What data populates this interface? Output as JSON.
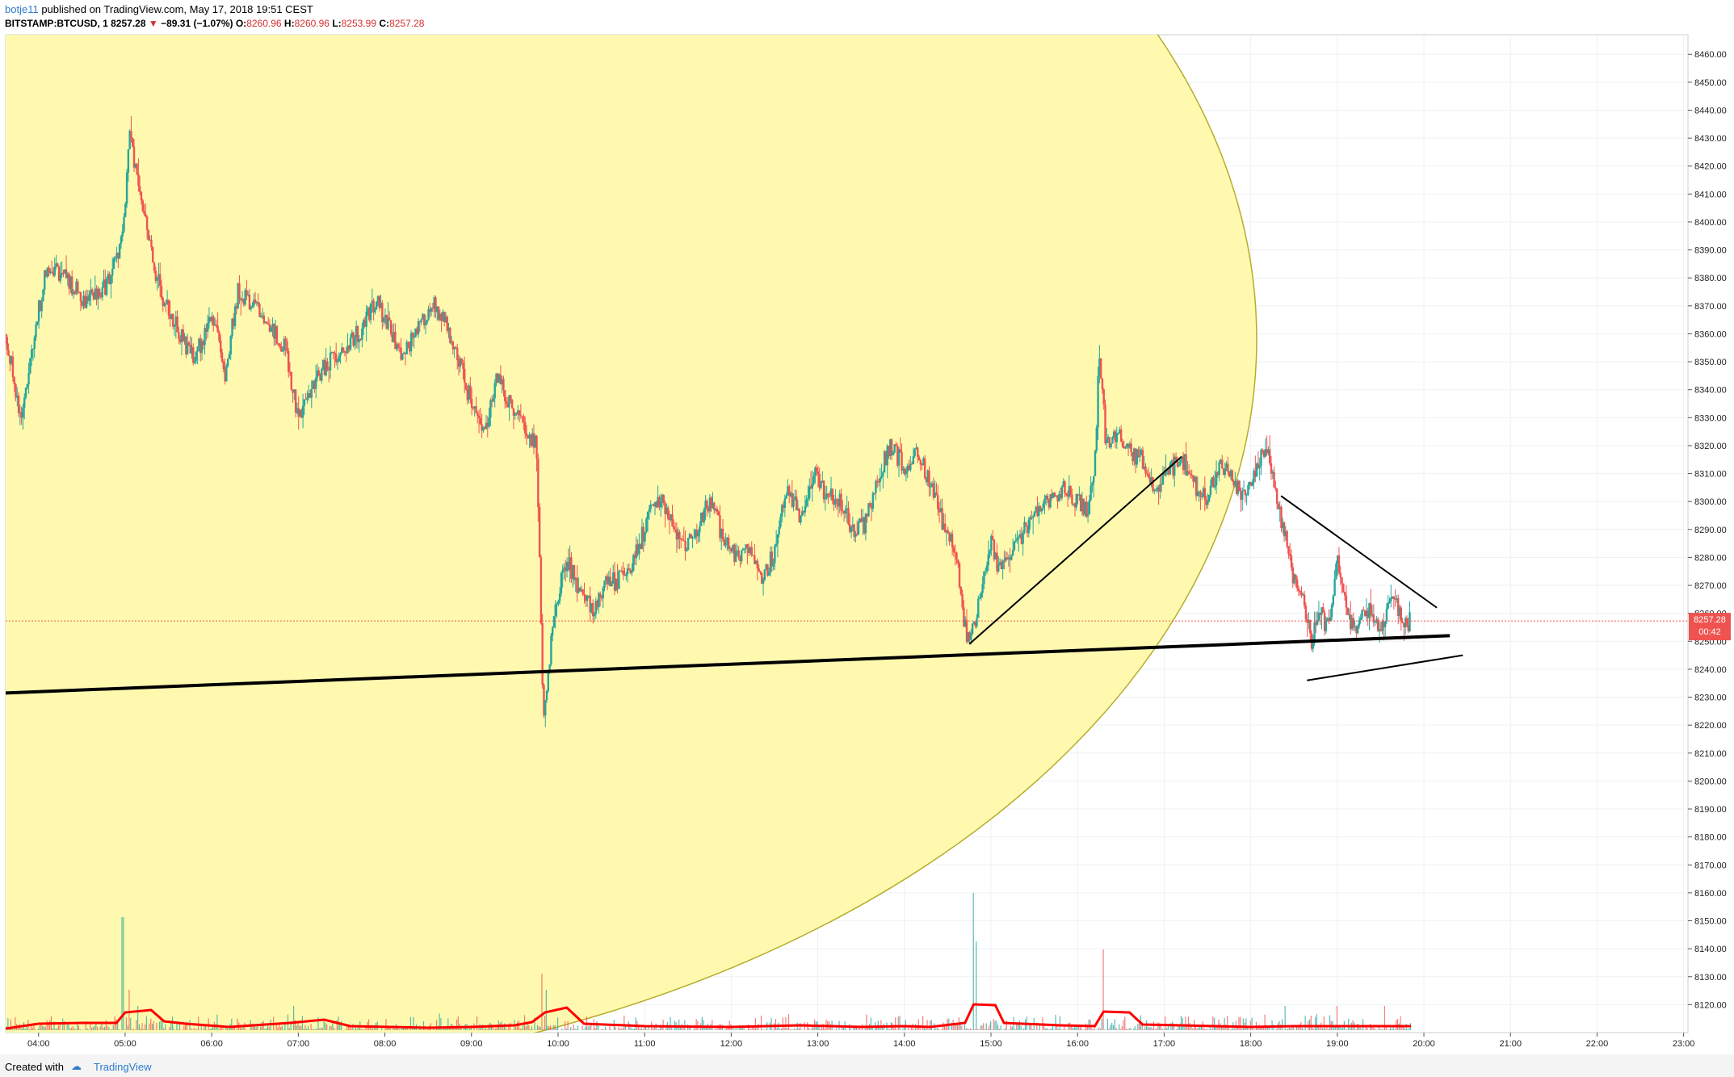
{
  "header": {
    "user": "botje11",
    "published_text": "published on TradingView.com, May 17, 2018 19:51 CEST",
    "symbol": "BITSTAMP:BTCUSD, 1",
    "last": "8257.28",
    "arrow": "▼",
    "change": "−89.31 (−1.07%)",
    "o_label": "O:",
    "o_value": "8260.96",
    "h_label": "H:",
    "h_value": "8260.96",
    "l_label": "L:",
    "l_value": "8253.99",
    "c_label": "C:",
    "c_value": "8257.28"
  },
  "footer": {
    "created_with": "Created with",
    "brand": "TradingView"
  },
  "price_tag": {
    "value": "8257.28",
    "countdown": "00:42"
  },
  "colors": {
    "up": "#26a69a",
    "down": "#ef5350",
    "ellipse_fill": "#fff9b0",
    "ellipse_stroke": "#b5ad2a",
    "volume_ma": "#ff0000",
    "price_tag": "#ef5350",
    "grid": "#eef0f3"
  },
  "chart_data": {
    "type": "candlestick",
    "ylim": [
      8110,
      8467
    ],
    "x_range_hours": [
      3.62,
      23.05
    ],
    "y_ticks": [
      8120,
      8130,
      8140,
      8150,
      8160,
      8170,
      8180,
      8190,
      8200,
      8210,
      8220,
      8230,
      8240,
      8250,
      8260,
      8270,
      8280,
      8290,
      8300,
      8310,
      8320,
      8330,
      8340,
      8350,
      8360,
      8370,
      8380,
      8390,
      8400,
      8410,
      8420,
      8430,
      8440,
      8450,
      8460
    ],
    "y_tick_labels": [
      "8120.00",
      "8130.00",
      "8140.00",
      "8150.00",
      "8160.00",
      "8170.00",
      "8180.00",
      "8190.00",
      "8200.00",
      "8210.00",
      "8220.00",
      "8230.00",
      "8240.00",
      "8250.00",
      "8260.00",
      "8270.00",
      "8280.00",
      "8290.00",
      "8300.00",
      "8310.00",
      "8320.00",
      "8330.00",
      "8340.00",
      "8350.00",
      "8360.00",
      "8370.00",
      "8380.00",
      "8390.00",
      "8400.00",
      "8410.00",
      "8420.00",
      "8430.00",
      "8440.00",
      "8450.00",
      "8460.00"
    ],
    "x_ticks": [
      4,
      5,
      6,
      7,
      8,
      9,
      10,
      11,
      12,
      13,
      14,
      15,
      16,
      17,
      18,
      19,
      20,
      21,
      22,
      23
    ],
    "x_tick_labels": [
      "04:00",
      "05:00",
      "06:00",
      "07:00",
      "08:00",
      "09:00",
      "10:00",
      "11:00",
      "12:00",
      "13:00",
      "14:00",
      "15:00",
      "16:00",
      "17:00",
      "18:00",
      "19:00",
      "20:00",
      "21:00",
      "22:00",
      "23:00"
    ],
    "last_price": 8257.28,
    "price_path": [
      [
        3.62,
        8360
      ],
      [
        3.8,
        8330
      ],
      [
        3.95,
        8360
      ],
      [
        4.1,
        8385
      ],
      [
        4.3,
        8380
      ],
      [
        4.55,
        8372
      ],
      [
        4.8,
        8378
      ],
      [
        4.98,
        8395
      ],
      [
        5.05,
        8435
      ],
      [
        5.12,
        8418
      ],
      [
        5.3,
        8388
      ],
      [
        5.45,
        8372
      ],
      [
        5.6,
        8362
      ],
      [
        5.8,
        8350
      ],
      [
        6.0,
        8368
      ],
      [
        6.15,
        8345
      ],
      [
        6.3,
        8375
      ],
      [
        6.45,
        8372
      ],
      [
        6.6,
        8366
      ],
      [
        6.85,
        8355
      ],
      [
        7.0,
        8330
      ],
      [
        7.15,
        8340
      ],
      [
        7.3,
        8348
      ],
      [
        7.5,
        8355
      ],
      [
        7.7,
        8360
      ],
      [
        7.9,
        8372
      ],
      [
        8.05,
        8362
      ],
      [
        8.2,
        8352
      ],
      [
        8.4,
        8362
      ],
      [
        8.55,
        8372
      ],
      [
        8.75,
        8360
      ],
      [
        8.95,
        8340
      ],
      [
        9.15,
        8325
      ],
      [
        9.3,
        8345
      ],
      [
        9.45,
        8335
      ],
      [
        9.6,
        8328
      ],
      [
        9.75,
        8320
      ],
      [
        9.8,
        8262
      ],
      [
        9.83,
        8225
      ],
      [
        9.88,
        8235
      ],
      [
        9.95,
        8260
      ],
      [
        10.1,
        8280
      ],
      [
        10.25,
        8268
      ],
      [
        10.4,
        8262
      ],
      [
        10.55,
        8270
      ],
      [
        10.7,
        8272
      ],
      [
        10.85,
        8278
      ],
      [
        11.0,
        8290
      ],
      [
        11.15,
        8302
      ],
      [
        11.3,
        8295
      ],
      [
        11.45,
        8283
      ],
      [
        11.6,
        8290
      ],
      [
        11.75,
        8300
      ],
      [
        11.9,
        8288
      ],
      [
        12.05,
        8280
      ],
      [
        12.2,
        8285
      ],
      [
        12.35,
        8272
      ],
      [
        12.5,
        8282
      ],
      [
        12.65,
        8305
      ],
      [
        12.8,
        8295
      ],
      [
        12.95,
        8310
      ],
      [
        13.1,
        8302
      ],
      [
        13.25,
        8300
      ],
      [
        13.4,
        8290
      ],
      [
        13.55,
        8292
      ],
      [
        13.7,
        8310
      ],
      [
        13.85,
        8320
      ],
      [
        14.0,
        8312
      ],
      [
        14.15,
        8318
      ],
      [
        14.3,
        8306
      ],
      [
        14.45,
        8292
      ],
      [
        14.6,
        8280
      ],
      [
        14.7,
        8255
      ],
      [
        14.75,
        8248
      ],
      [
        14.85,
        8262
      ],
      [
        15.0,
        8285
      ],
      [
        15.1,
        8275
      ],
      [
        15.25,
        8282
      ],
      [
        15.4,
        8290
      ],
      [
        15.55,
        8298
      ],
      [
        15.7,
        8302
      ],
      [
        15.85,
        8305
      ],
      [
        16.0,
        8300
      ],
      [
        16.12,
        8296
      ],
      [
        16.2,
        8312
      ],
      [
        16.25,
        8355
      ],
      [
        16.33,
        8320
      ],
      [
        16.45,
        8325
      ],
      [
        16.6,
        8318
      ],
      [
        16.75,
        8315
      ],
      [
        16.9,
        8305
      ],
      [
        17.05,
        8310
      ],
      [
        17.2,
        8316
      ],
      [
        17.35,
        8306
      ],
      [
        17.5,
        8300
      ],
      [
        17.65,
        8315
      ],
      [
        17.8,
        8306
      ],
      [
        17.95,
        8302
      ],
      [
        18.1,
        8314
      ],
      [
        18.2,
        8320
      ],
      [
        18.3,
        8300
      ],
      [
        18.4,
        8288
      ],
      [
        18.5,
        8272
      ],
      [
        18.6,
        8264
      ],
      [
        18.7,
        8250
      ],
      [
        18.8,
        8260
      ],
      [
        18.9,
        8254
      ],
      [
        19.0,
        8280
      ],
      [
        19.1,
        8262
      ],
      [
        19.2,
        8252
      ],
      [
        19.35,
        8262
      ],
      [
        19.5,
        8255
      ],
      [
        19.65,
        8265
      ],
      [
        19.78,
        8256
      ],
      [
        19.85,
        8257.28
      ]
    ],
    "volume_ma": [
      [
        3.62,
        0.2
      ],
      [
        4.0,
        0.8
      ],
      [
        4.5,
        0.9
      ],
      [
        4.9,
        0.9
      ],
      [
        5.0,
        2.2
      ],
      [
        5.3,
        2.5
      ],
      [
        5.45,
        1.1
      ],
      [
        5.7,
        0.8
      ],
      [
        6.2,
        0.4
      ],
      [
        6.9,
        0.9
      ],
      [
        7.3,
        1.3
      ],
      [
        7.6,
        0.5
      ],
      [
        8.5,
        0.3
      ],
      [
        9.0,
        0.4
      ],
      [
        9.5,
        0.6
      ],
      [
        9.7,
        1.0
      ],
      [
        9.85,
        2.2
      ],
      [
        10.1,
        2.8
      ],
      [
        10.3,
        0.8
      ],
      [
        11.0,
        0.5
      ],
      [
        12.0,
        0.4
      ],
      [
        12.8,
        0.6
      ],
      [
        13.5,
        0.4
      ],
      [
        14.0,
        0.5
      ],
      [
        14.3,
        0.4
      ],
      [
        14.7,
        0.9
      ],
      [
        14.8,
        3.2
      ],
      [
        15.05,
        3.1
      ],
      [
        15.15,
        0.9
      ],
      [
        15.8,
        0.6
      ],
      [
        16.2,
        0.5
      ],
      [
        16.3,
        2.3
      ],
      [
        16.6,
        2.2
      ],
      [
        16.75,
        0.7
      ],
      [
        17.2,
        0.6
      ],
      [
        18.0,
        0.4
      ],
      [
        18.5,
        0.5
      ],
      [
        19.0,
        0.5
      ],
      [
        19.5,
        0.5
      ],
      [
        19.85,
        0.5
      ]
    ],
    "volume_spikes": [
      [
        4.97,
        14
      ],
      [
        5.05,
        5
      ],
      [
        5.15,
        3
      ],
      [
        6.95,
        3
      ],
      [
        9.82,
        7
      ],
      [
        9.86,
        5
      ],
      [
        14.8,
        17
      ],
      [
        14.83,
        11
      ],
      [
        16.3,
        10
      ],
      [
        18.4,
        3
      ],
      [
        19.0,
        3
      ],
      [
        19.55,
        3
      ]
    ],
    "drawings": {
      "ellipse_center_hours": 5.1,
      "ellipse_center_price": 8358,
      "support_line": [
        [
          3.62,
          8231.5
        ],
        [
          20.3,
          8252
        ]
      ],
      "rising_trendline": [
        [
          14.75,
          8249
        ],
        [
          17.2,
          8316
        ]
      ],
      "triangle_upper": [
        [
          18.35,
          8302
        ],
        [
          20.15,
          8262
        ]
      ],
      "triangle_lower": [
        [
          18.65,
          8236
        ],
        [
          20.45,
          8245
        ]
      ]
    }
  }
}
